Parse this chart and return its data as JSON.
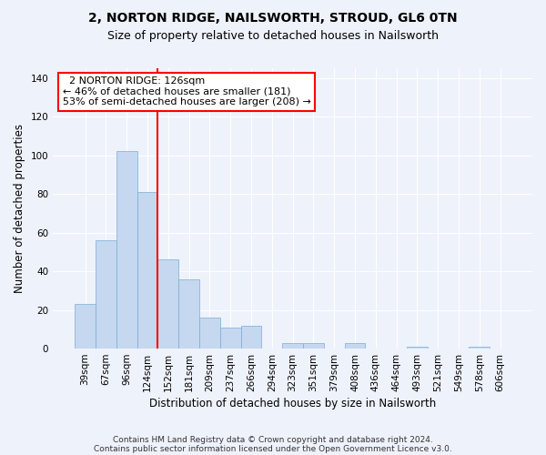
{
  "title1": "2, NORTON RIDGE, NAILSWORTH, STROUD, GL6 0TN",
  "title2": "Size of property relative to detached houses in Nailsworth",
  "xlabel": "Distribution of detached houses by size in Nailsworth",
  "ylabel": "Number of detached properties",
  "categories": [
    "39sqm",
    "67sqm",
    "96sqm",
    "124sqm",
    "152sqm",
    "181sqm",
    "209sqm",
    "237sqm",
    "266sqm",
    "294sqm",
    "323sqm",
    "351sqm",
    "379sqm",
    "408sqm",
    "436sqm",
    "464sqm",
    "493sqm",
    "521sqm",
    "549sqm",
    "578sqm",
    "606sqm"
  ],
  "values": [
    23,
    56,
    102,
    81,
    46,
    36,
    16,
    11,
    12,
    0,
    3,
    3,
    0,
    3,
    0,
    0,
    1,
    0,
    0,
    1,
    0
  ],
  "bar_color": "#c5d8f0",
  "bar_edge_color": "#7aadd4",
  "bar_width": 1.0,
  "redline_x": 3.5,
  "annotation_line1": "2 NORTON RIDGE: 126sqm",
  "annotation_line2": "← 46% of detached houses are smaller (181)",
  "annotation_line3": "53% of semi-detached houses are larger (208) →",
  "ylim": [
    0,
    145
  ],
  "yticks": [
    0,
    20,
    40,
    60,
    80,
    100,
    120,
    140
  ],
  "footnote1": "Contains HM Land Registry data © Crown copyright and database right 2024.",
  "footnote2": "Contains public sector information licensed under the Open Government Licence v3.0.",
  "bg_color": "#eef2fb",
  "grid_color": "#ffffff",
  "title1_fontsize": 10,
  "title2_fontsize": 9,
  "axis_label_fontsize": 8.5,
  "tick_fontsize": 7.5,
  "footnote_fontsize": 6.5,
  "annotation_fontsize": 8
}
